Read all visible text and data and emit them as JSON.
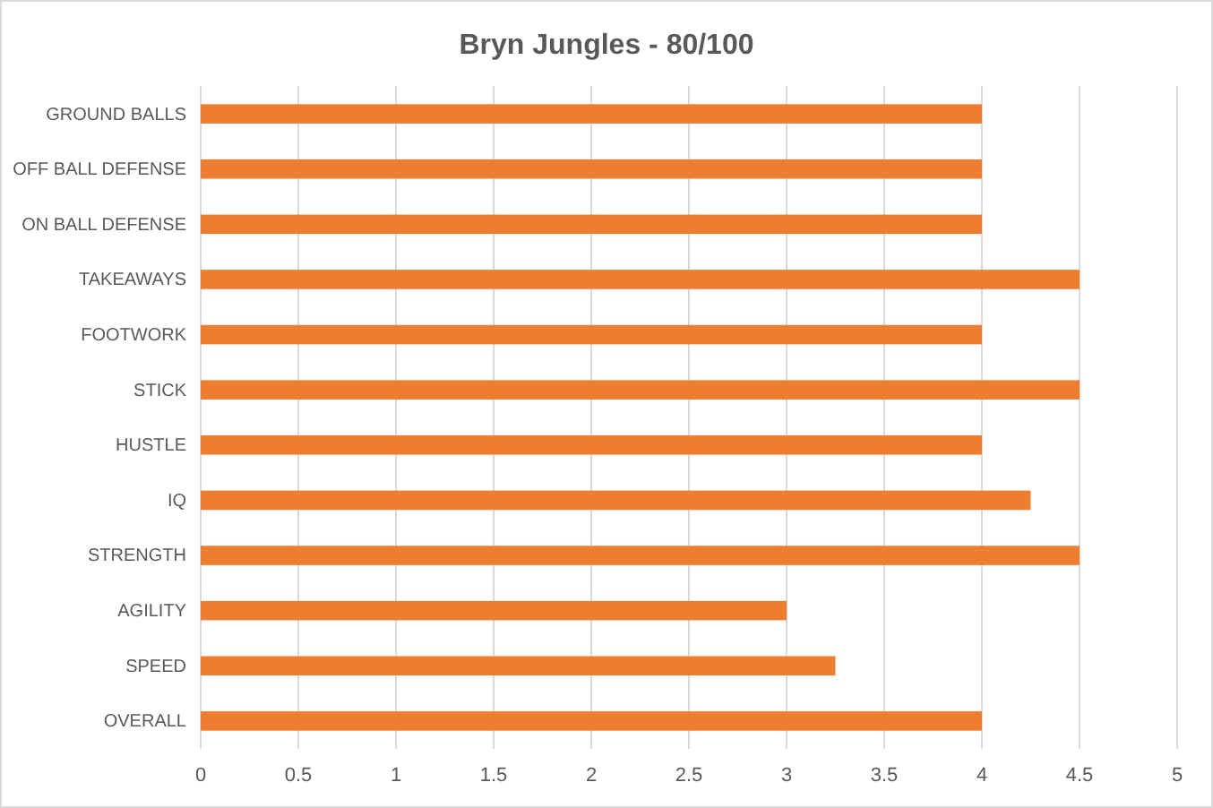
{
  "chart_data": {
    "type": "bar",
    "title": "Bryn Jungles - 80/100",
    "orientation": "horizontal",
    "categories": [
      "GROUND BALLS",
      "OFF BALL DEFENSE",
      "ON BALL DEFENSE",
      "TAKEAWAYS",
      "FOOTWORK",
      "STICK",
      "HUSTLE",
      "IQ",
      "STRENGTH",
      "AGILITY",
      "SPEED",
      "OVERALL"
    ],
    "values": [
      4,
      4,
      4,
      4.5,
      4,
      4.5,
      4,
      4.25,
      4.5,
      3,
      3.25,
      4
    ],
    "color": "#ed7d31",
    "xlim": [
      0,
      5
    ],
    "xticks": [
      0,
      0.5,
      1,
      1.5,
      2,
      2.5,
      3,
      3.5,
      4,
      4.5,
      5
    ],
    "grid": "x"
  }
}
